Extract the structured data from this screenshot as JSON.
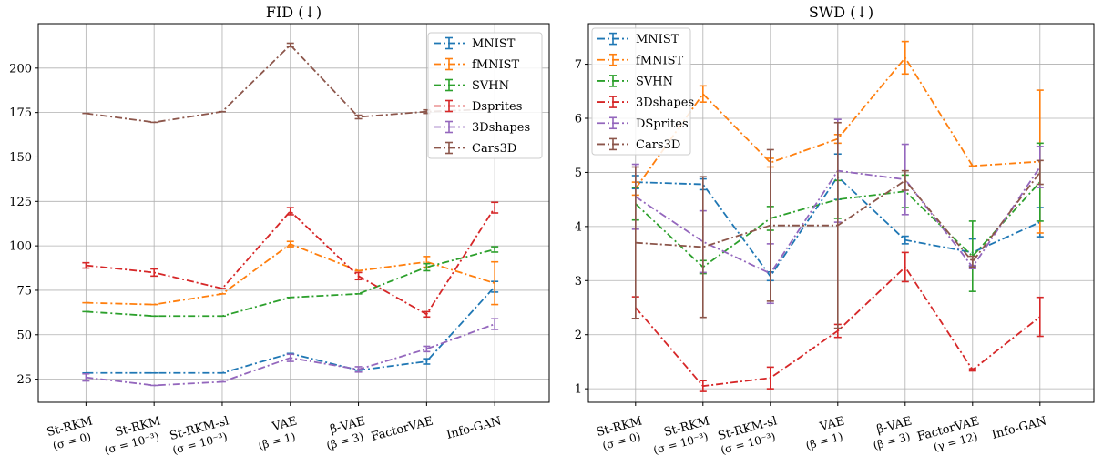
{
  "chart_data": [
    {
      "type": "line",
      "title": "FID (↓)",
      "xlabel": "",
      "ylabel": "",
      "ylim": [
        12,
        225
      ],
      "yticks": [
        25,
        50,
        75,
        100,
        125,
        150,
        175,
        200
      ],
      "grid": true,
      "legend_position": "top-right",
      "categories": [
        {
          "line1": "St-RKM",
          "line2": "(σ = 0)"
        },
        {
          "line1": "St-RKM",
          "line2": "(σ = 10⁻³)"
        },
        {
          "line1": "St-RKM-sl",
          "line2": "(σ = 10⁻³)"
        },
        {
          "line1": "VAE",
          "line2": "(β = 1)"
        },
        {
          "line1": "β-VAE",
          "line2": "(β = 3)"
        },
        {
          "line1": "FactorVAE",
          "line2": ""
        },
        {
          "line1": "Info-GAN",
          "line2": ""
        }
      ],
      "series": [
        {
          "name": "MNIST",
          "color": "#1f77b4",
          "x_index": [
            0,
            1,
            2,
            3,
            4,
            5,
            6
          ],
          "values": [
            28.5,
            28.5,
            28.5,
            39.5,
            30,
            35,
            77
          ],
          "errors": [
            0,
            0,
            0,
            0,
            0,
            1.5,
            3
          ]
        },
        {
          "name": "fMNIST",
          "color": "#ff7f0e",
          "x_index": [
            0,
            1,
            2,
            3,
            4,
            5,
            6
          ],
          "values": [
            68,
            67,
            73,
            101,
            86,
            91,
            79
          ],
          "errors": [
            0,
            0,
            0,
            1.5,
            0,
            3,
            12
          ]
        },
        {
          "name": "SVHN",
          "color": "#2ca02c",
          "x_index": [
            0,
            1,
            2,
            3,
            4,
            5,
            6
          ],
          "values": [
            63,
            60.5,
            60.5,
            71,
            73,
            88,
            98
          ],
          "errors": [
            0,
            0,
            0,
            0,
            0,
            2,
            1.5
          ]
        },
        {
          "name": "Dsprites",
          "color": "#d62728",
          "x_index": [
            0,
            1,
            2,
            3,
            4,
            5,
            6
          ],
          "values": [
            89,
            85,
            76,
            119.5,
            83,
            61.5,
            121.5
          ],
          "errors": [
            1.5,
            2,
            0,
            2,
            2,
            1.5,
            3
          ]
        },
        {
          "name": "3Dshapes",
          "color": "#9467bd",
          "x_index": [
            0,
            1,
            2,
            3,
            4,
            5,
            6
          ],
          "values": [
            26,
            21.5,
            23.5,
            37,
            30.5,
            42,
            56
          ],
          "errors": [
            2,
            0,
            0,
            2,
            1.5,
            1.5,
            3
          ]
        },
        {
          "name": "Cars3D",
          "color": "#8c564b",
          "x_index": [
            0,
            1,
            2,
            3,
            4,
            5,
            6
          ],
          "values": [
            174.5,
            169.5,
            175.5,
            213,
            172.5,
            175.5,
            177
          ],
          "errors": [
            0,
            0,
            0,
            1,
            1,
            1,
            0
          ]
        }
      ]
    },
    {
      "type": "line",
      "title": "SWD (↓)",
      "xlabel": "",
      "ylabel": "",
      "ylim": [
        0.75,
        7.75
      ],
      "yticks": [
        1,
        2,
        3,
        4,
        5,
        6,
        7
      ],
      "grid": true,
      "legend_position": "top-left",
      "categories": [
        {
          "line1": "St-RKM",
          "line2": "(σ = 0)"
        },
        {
          "line1": "St-RKM",
          "line2": "(σ = 10⁻³)"
        },
        {
          "line1": "St-RKM-sl",
          "line2": "(σ = 10⁻³)"
        },
        {
          "line1": "VAE",
          "line2": "(β = 1)"
        },
        {
          "line1": "β-VAE",
          "line2": "(β = 3)"
        },
        {
          "line1": "FactorVAE",
          "line2": "(γ = 12)"
        },
        {
          "line1": "Info-GAN",
          "line2": ""
        }
      ],
      "series": [
        {
          "name": "MNIST",
          "color": "#1f77b4",
          "x_index": [
            0,
            1,
            2,
            3,
            4,
            5,
            6
          ],
          "values": [
            4.82,
            4.78,
            3.08,
            4.92,
            3.75,
            3.52,
            4.08
          ],
          "errors": [
            0.12,
            0.1,
            0.08,
            0.42,
            0.07,
            0.25,
            0.27
          ]
        },
        {
          "name": "fMNIST",
          "color": "#ff7f0e",
          "x_index": [
            0,
            1,
            2,
            3,
            4,
            5,
            6
          ],
          "values": [
            4.7,
            6.45,
            5.18,
            5.62,
            7.12,
            5.12,
            5.2
          ],
          "errors": [
            0.12,
            0.15,
            0.08,
            0.08,
            0.3,
            0,
            1.32
          ]
        },
        {
          "name": "SVHN",
          "color": "#2ca02c",
          "x_index": [
            0,
            1,
            2,
            3,
            4,
            5,
            6
          ],
          "values": [
            4.42,
            3.25,
            4.15,
            4.5,
            4.65,
            3.45,
            4.82
          ],
          "errors": [
            0.3,
            0.12,
            0.22,
            0.35,
            0.3,
            0.65,
            0.72
          ]
        },
        {
          "name": "3Dshapes",
          "color": "#d62728",
          "x_index": [
            0,
            1,
            2,
            3,
            4,
            5,
            6
          ],
          "values": [
            2.5,
            1.05,
            1.2,
            2.07,
            3.25,
            1.35,
            2.33
          ],
          "errors": [
            0.2,
            0.1,
            0.2,
            0.12,
            0.27,
            0.02,
            0.36
          ]
        },
        {
          "name": "DSprites",
          "color": "#9467bd",
          "x_index": [
            0,
            1,
            2,
            3,
            4,
            5,
            6
          ],
          "values": [
            4.55,
            3.72,
            3.13,
            5.03,
            4.87,
            3.25,
            5.1
          ],
          "errors": [
            0.6,
            0.57,
            0.55,
            0.95,
            0.65,
            0.03,
            0.38
          ]
        },
        {
          "name": "Cars3D",
          "color": "#8c564b",
          "x_index": [
            0,
            1,
            2,
            3,
            4,
            5,
            6
          ],
          "values": [
            3.7,
            3.62,
            4.02,
            4.02,
            4.85,
            3.35,
            5.0
          ],
          "errors": [
            1.4,
            1.3,
            1.4,
            1.9,
            0.18,
            0.1,
            0.22
          ]
        }
      ]
    }
  ]
}
